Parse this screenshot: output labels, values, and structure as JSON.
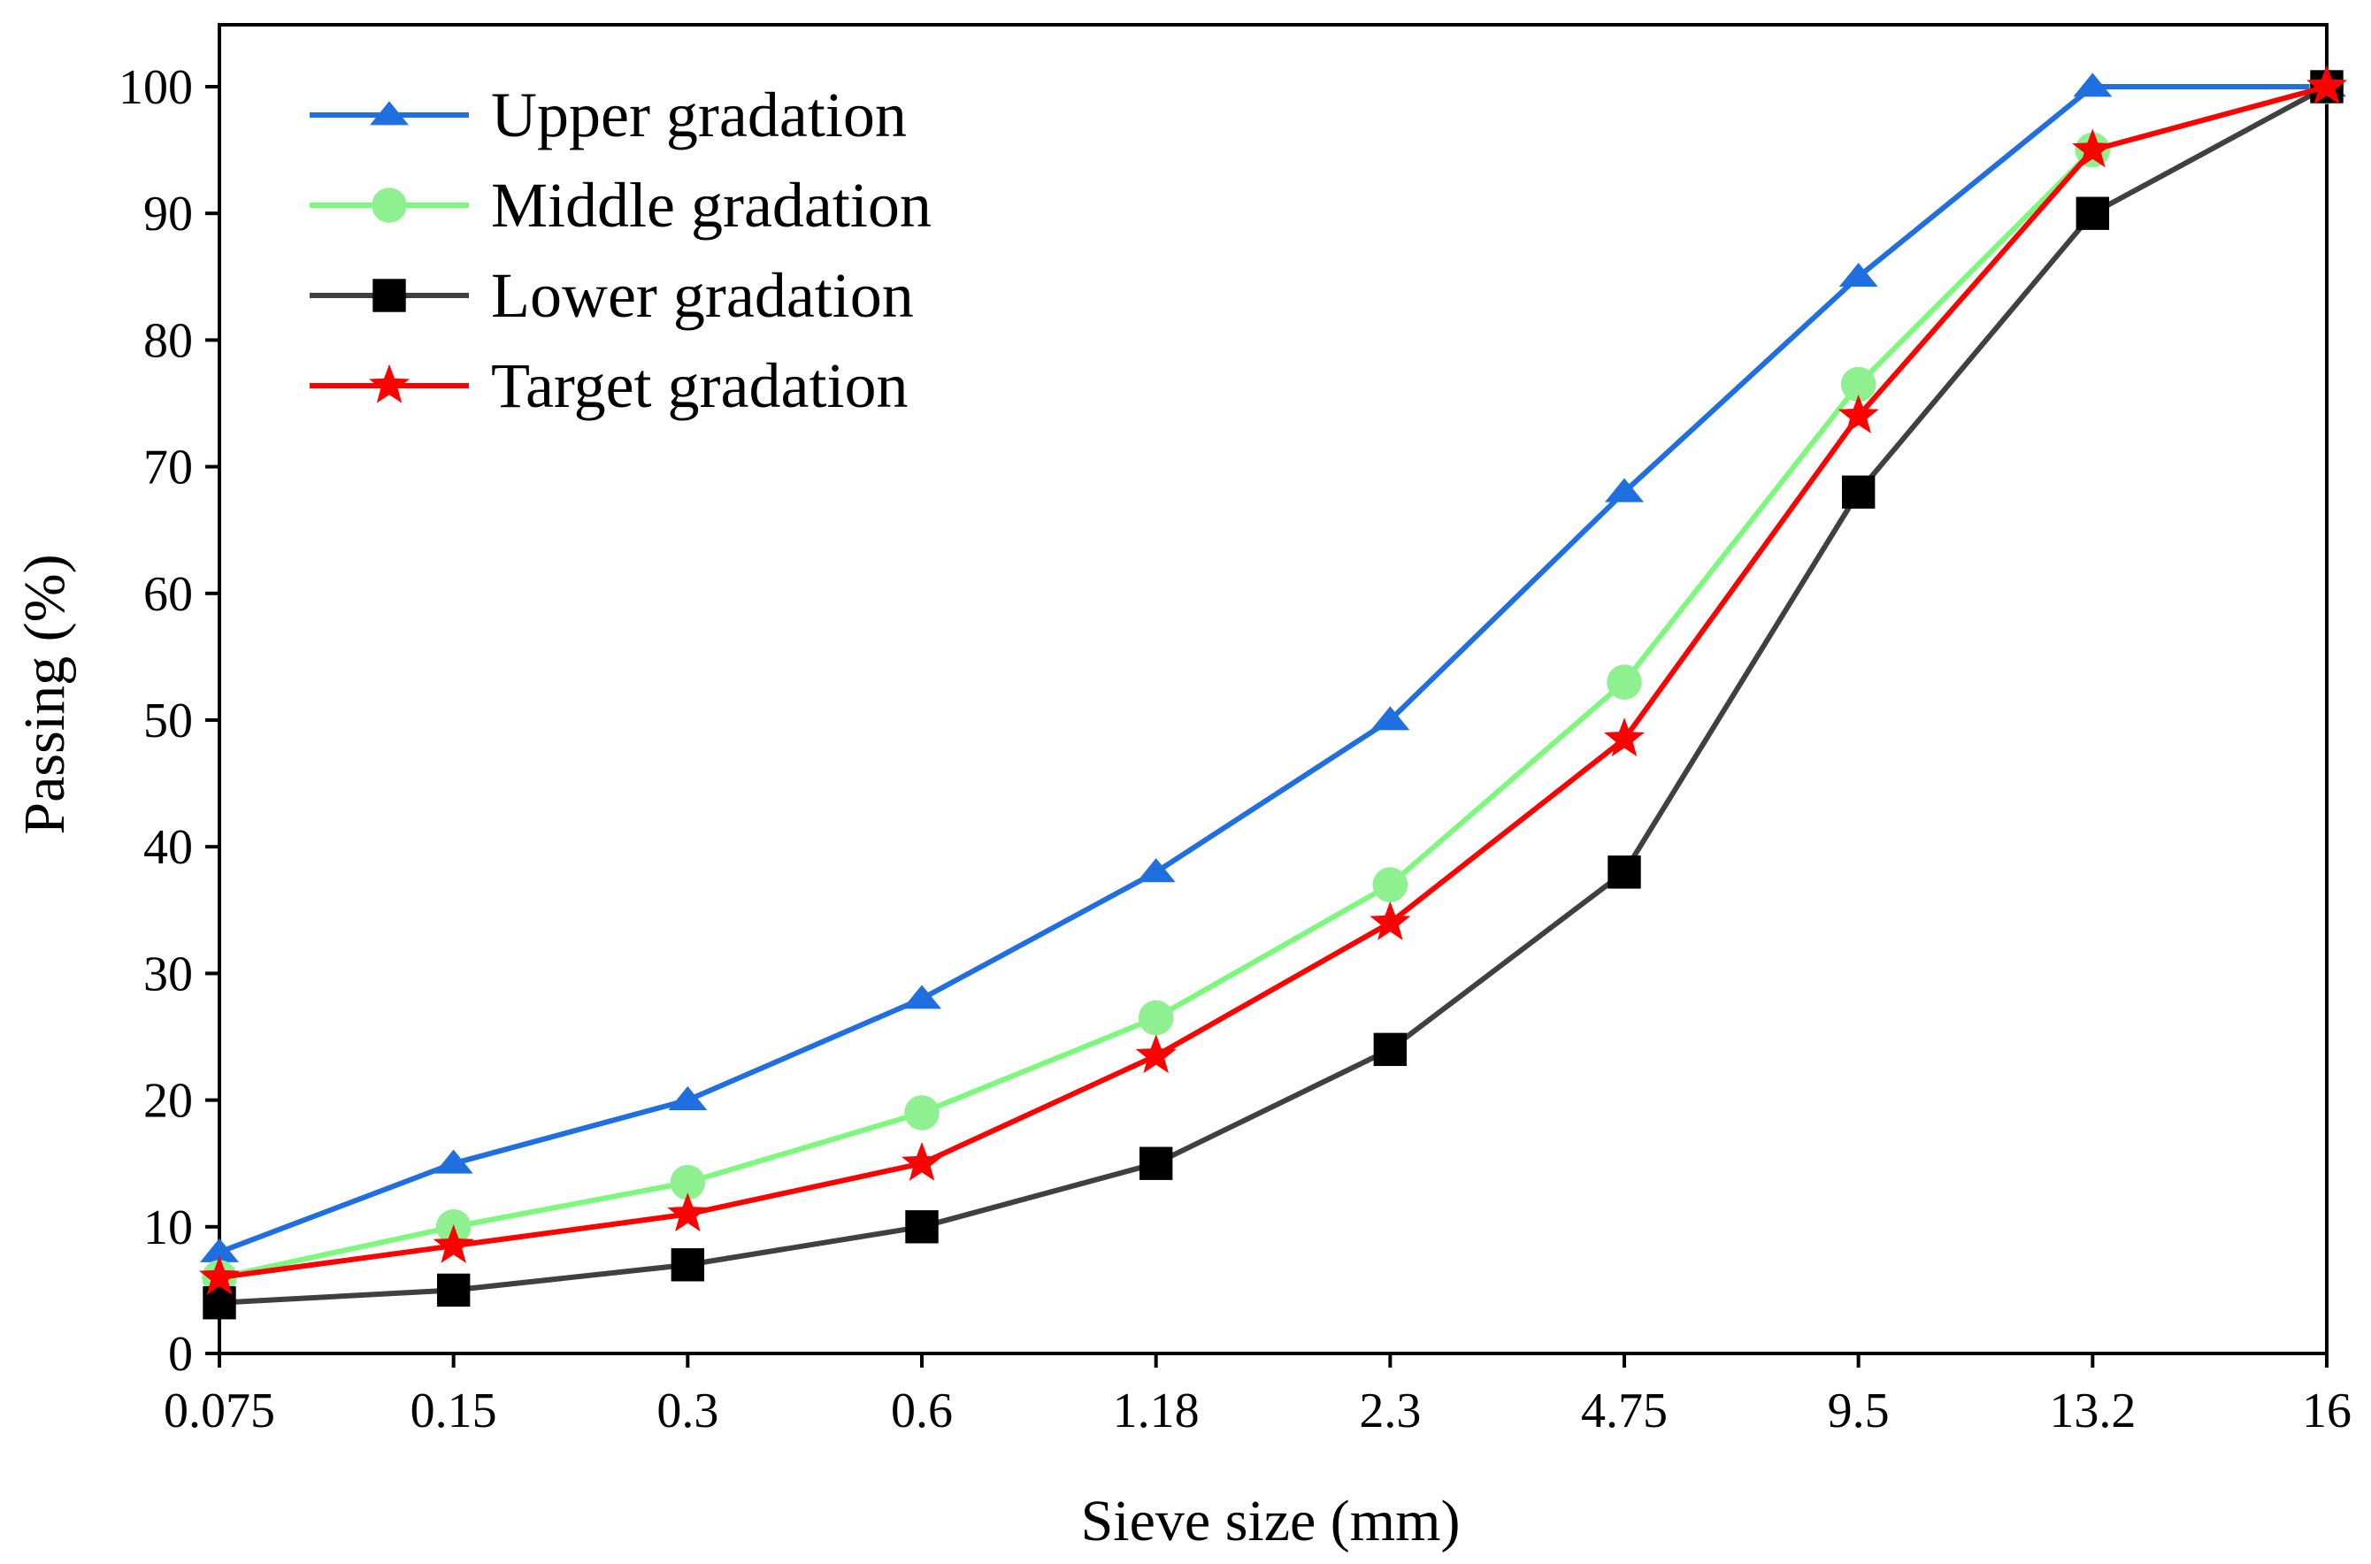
{
  "chart_data": {
    "type": "line",
    "xlabel": "Sieve size (mm)",
    "ylabel": "Passing (%)",
    "categories": [
      "0.075",
      "0.15",
      "0.3",
      "0.6",
      "1.18",
      "2.3",
      "4.75",
      "9.5",
      "13.2",
      "16"
    ],
    "ylim": [
      0,
      100
    ],
    "yticks": [
      0,
      10,
      20,
      30,
      40,
      50,
      60,
      70,
      80,
      90,
      100
    ],
    "grid": false,
    "legend_position": "top-left",
    "series": [
      {
        "name": "Upper gradation",
        "marker": "triangle",
        "color": "#1f6fe0",
        "marker_color": "#1f6fe0",
        "values": [
          8,
          15,
          20,
          28,
          38,
          50,
          68,
          85,
          100,
          100
        ]
      },
      {
        "name": "Middle gradation",
        "marker": "circle",
        "color": "#7cf87c",
        "marker_color": "#8ef08e",
        "values": [
          6,
          10,
          13.5,
          19,
          26.5,
          37,
          53,
          76.5,
          95,
          100
        ]
      },
      {
        "name": "Lower gradation",
        "marker": "square",
        "color": "#404040",
        "marker_color": "#000000",
        "values": [
          4,
          5,
          7,
          10,
          15,
          24,
          38,
          68,
          90,
          100
        ]
      },
      {
        "name": "Target gradation",
        "marker": "star",
        "color": "#ff0000",
        "marker_color": "#ff0000",
        "values": [
          6,
          8.5,
          11,
          15,
          23.5,
          34,
          48.5,
          74,
          95,
          100
        ]
      }
    ]
  }
}
